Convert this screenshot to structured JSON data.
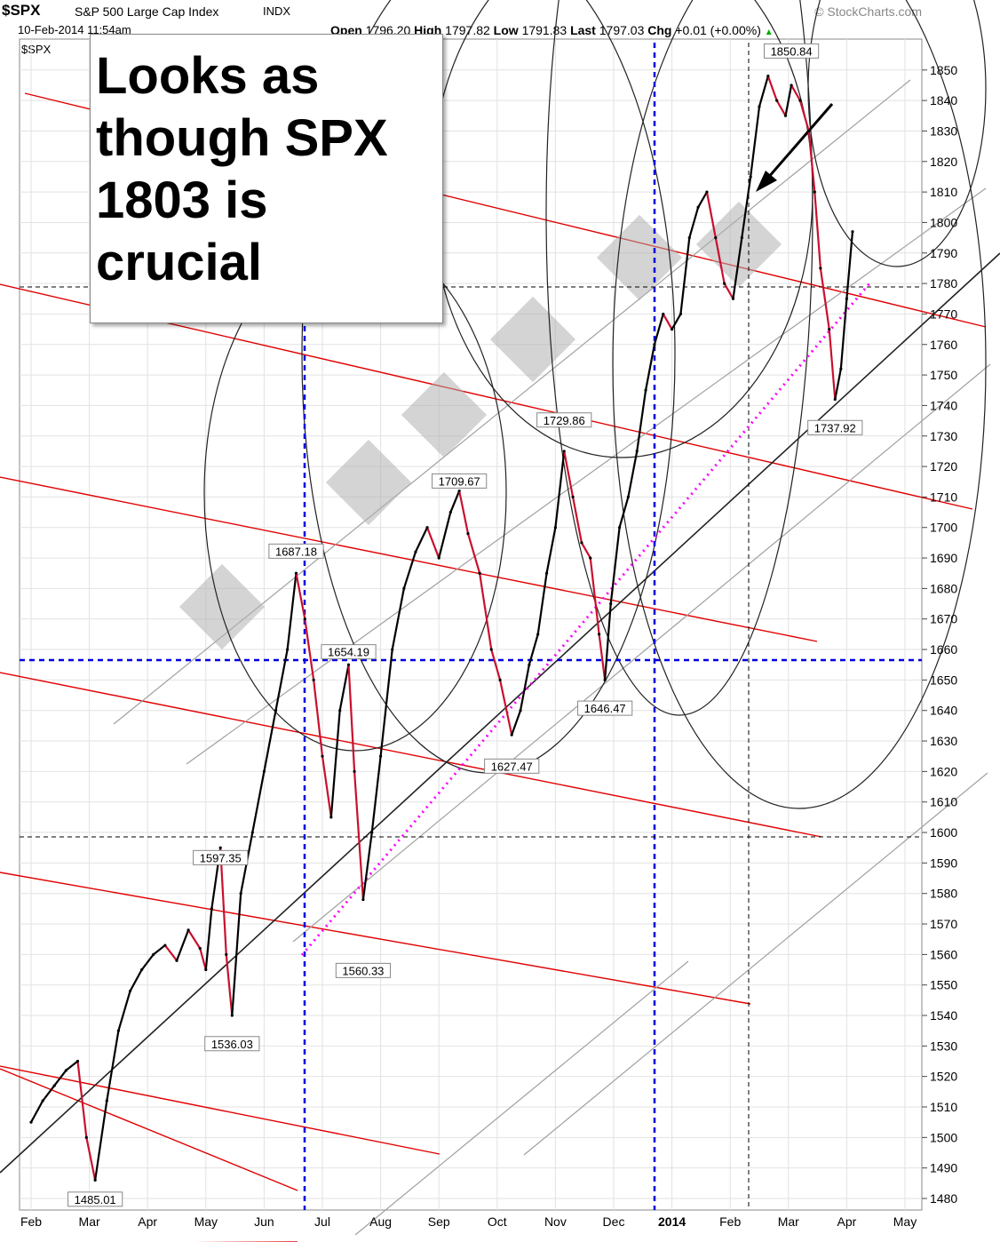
{
  "header": {
    "ticker": "$SPX",
    "description": "S&P 500 Large Cap Index",
    "exchange": "INDX",
    "brand": "© StockCharts.com",
    "date": "10-Feb-2014 11:54am",
    "open_label": "Open",
    "open": "1796.20",
    "high_label": "High",
    "high": "1797.82",
    "low_label": "Low",
    "low": "1791.83",
    "last_label": "Last",
    "last": "1797.03",
    "chg_label": "Chg",
    "chg": "+0.01 (+0.00%)",
    "series_label": "$SPX"
  },
  "note": "Looks as\nthough SPX\n1803 is\ncrucial",
  "colors": {
    "up": "#000000",
    "down": "#c8102e",
    "channel": "#e00000",
    "trend": "#a0a0a0",
    "arc": "#222222",
    "dashed": "#0000e0",
    "dotted": "#ff00ff"
  },
  "chart_data": {
    "type": "line",
    "title": "$SPX S&P 500 Large Cap Index",
    "ylim": [
      1475,
      1860
    ],
    "y_ticks": [
      1480,
      1490,
      1500,
      1510,
      1520,
      1530,
      1540,
      1550,
      1560,
      1570,
      1580,
      1590,
      1600,
      1610,
      1620,
      1630,
      1640,
      1650,
      1660,
      1670,
      1680,
      1690,
      1700,
      1710,
      1720,
      1730,
      1740,
      1750,
      1760,
      1770,
      1780,
      1790,
      1800,
      1810,
      1820,
      1830,
      1840,
      1850
    ],
    "x_labels": [
      "Feb",
      "Mar",
      "Apr",
      "May",
      "Jun",
      "Jul",
      "Aug",
      "Sep",
      "Oct",
      "Nov",
      "Dec",
      "2014",
      "Feb",
      "Mar",
      "Apr",
      "May"
    ],
    "x_label_months": [
      0,
      1,
      2,
      3,
      4,
      5,
      6,
      7,
      8,
      9,
      10,
      11,
      12,
      13,
      14,
      15
    ],
    "series": [
      {
        "values": [
          [
            0.0,
            1505
          ],
          [
            0.2,
            1512
          ],
          [
            0.4,
            1517
          ],
          [
            0.6,
            1522
          ],
          [
            0.8,
            1525
          ],
          [
            0.95,
            1500
          ],
          [
            1.1,
            1486
          ],
          [
            1.3,
            1512
          ],
          [
            1.5,
            1535
          ],
          [
            1.7,
            1548
          ],
          [
            1.9,
            1555
          ],
          [
            2.1,
            1560
          ],
          [
            2.3,
            1563
          ],
          [
            2.5,
            1558
          ],
          [
            2.7,
            1568
          ],
          [
            2.9,
            1562
          ],
          [
            3.0,
            1555
          ],
          [
            3.1,
            1575
          ],
          [
            3.25,
            1595
          ],
          [
            3.35,
            1560
          ],
          [
            3.45,
            1540
          ],
          [
            3.6,
            1580
          ],
          [
            3.8,
            1600
          ],
          [
            4.0,
            1620
          ],
          [
            4.2,
            1640
          ],
          [
            4.4,
            1660
          ],
          [
            4.55,
            1685
          ],
          [
            4.7,
            1670
          ],
          [
            4.85,
            1650
          ],
          [
            5.0,
            1625
          ],
          [
            5.15,
            1605
          ],
          [
            5.3,
            1640
          ],
          [
            5.45,
            1655
          ],
          [
            5.55,
            1620
          ],
          [
            5.7,
            1578
          ],
          [
            5.85,
            1600
          ],
          [
            6.0,
            1625
          ],
          [
            6.2,
            1660
          ],
          [
            6.4,
            1680
          ],
          [
            6.6,
            1692
          ],
          [
            6.8,
            1700
          ],
          [
            7.0,
            1690
          ],
          [
            7.2,
            1705
          ],
          [
            7.35,
            1712
          ],
          [
            7.5,
            1698
          ],
          [
            7.7,
            1685
          ],
          [
            7.9,
            1660
          ],
          [
            8.05,
            1650
          ],
          [
            8.25,
            1632
          ],
          [
            8.4,
            1640
          ],
          [
            8.55,
            1655
          ],
          [
            8.7,
            1665
          ],
          [
            8.85,
            1685
          ],
          [
            9.0,
            1700
          ],
          [
            9.15,
            1725
          ],
          [
            9.3,
            1710
          ],
          [
            9.45,
            1695
          ],
          [
            9.6,
            1690
          ],
          [
            9.75,
            1665
          ],
          [
            9.85,
            1650
          ],
          [
            9.95,
            1675
          ],
          [
            10.1,
            1700
          ],
          [
            10.25,
            1710
          ],
          [
            10.4,
            1725
          ],
          [
            10.55,
            1745
          ],
          [
            10.7,
            1760
          ],
          [
            10.85,
            1770
          ],
          [
            11.0,
            1765
          ],
          [
            11.15,
            1770
          ],
          [
            11.3,
            1795
          ],
          [
            11.45,
            1805
          ],
          [
            11.6,
            1810
          ],
          [
            11.75,
            1795
          ],
          [
            11.9,
            1780
          ],
          [
            12.05,
            1775
          ],
          [
            12.2,
            1795
          ],
          [
            12.35,
            1815
          ],
          [
            12.5,
            1838
          ],
          [
            12.65,
            1848
          ],
          [
            12.8,
            1840
          ],
          [
            12.95,
            1835
          ],
          [
            13.05,
            1845
          ],
          [
            13.2,
            1840
          ],
          [
            13.35,
            1830
          ],
          [
            13.45,
            1810
          ],
          [
            13.55,
            1785
          ],
          [
            13.7,
            1765
          ],
          [
            13.8,
            1742
          ],
          [
            13.9,
            1752
          ],
          [
            14.0,
            1775
          ],
          [
            14.1,
            1797
          ]
        ]
      }
    ],
    "annotations": [
      {
        "text": "1485.01",
        "m": 1.1,
        "v": 1485
      },
      {
        "text": "1536.03",
        "m": 3.45,
        "v": 1536
      },
      {
        "text": "1560.33",
        "m": 5.7,
        "v": 1560
      },
      {
        "text": "1597.35",
        "m": 3.25,
        "v": 1597
      },
      {
        "text": "1687.18",
        "m": 4.55,
        "v": 1687
      },
      {
        "text": "1654.19",
        "m": 5.45,
        "v": 1654
      },
      {
        "text": "1709.67",
        "m": 7.35,
        "v": 1710
      },
      {
        "text": "1729.86",
        "m": 9.15,
        "v": 1730
      },
      {
        "text": "1627.47",
        "m": 8.25,
        "v": 1627
      },
      {
        "text": "1646.47",
        "m": 9.85,
        "v": 1646
      },
      {
        "text": "1850.84",
        "m": 13.05,
        "v": 1851
      },
      {
        "text": "1737.92",
        "m": 13.8,
        "v": 1738
      }
    ]
  }
}
